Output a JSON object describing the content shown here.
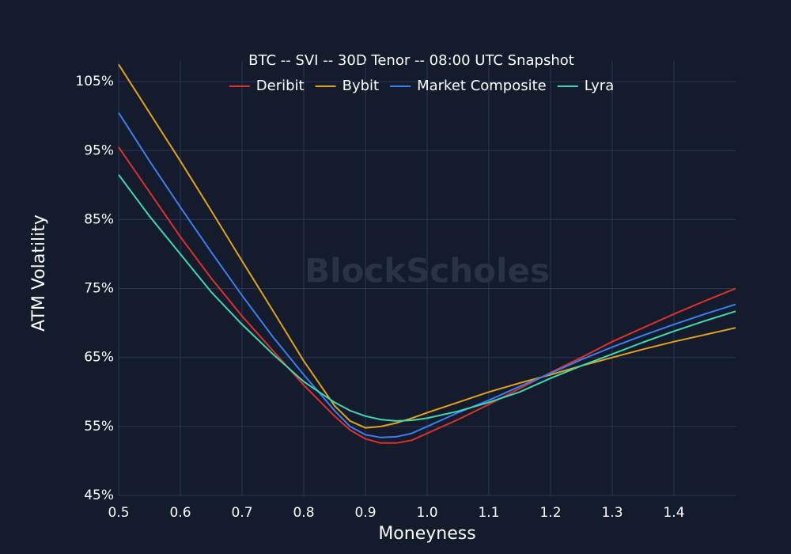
{
  "chart_data": {
    "type": "line",
    "title": "BTC -- SVI -- 30D Tenor -- 08:00 UTC Snapshot",
    "watermark": "BlockScholes",
    "x_label": "Moneyness",
    "y_label": "ATM Volatility",
    "x": [
      0.5,
      0.55,
      0.6,
      0.65,
      0.7,
      0.75,
      0.8,
      0.85,
      0.875,
      0.9,
      0.925,
      0.95,
      0.975,
      1.0,
      1.05,
      1.1,
      1.15,
      1.2,
      1.25,
      1.3,
      1.35,
      1.4,
      1.45,
      1.5
    ],
    "series": [
      {
        "name": "Deribit",
        "color": "#e0302a",
        "values": [
          95.5,
          89,
          82.5,
          76.5,
          71,
          66,
          61,
          56.5,
          54.5,
          53.2,
          52.6,
          52.6,
          53,
          54,
          56,
          58.2,
          60.5,
          62.8,
          65,
          67.3,
          69.3,
          71.3,
          73.2,
          75
        ]
      },
      {
        "name": "Bybit",
        "color": "#e3a21a",
        "values": [
          107.5,
          100.5,
          93.5,
          86.3,
          79,
          71.8,
          64.5,
          58,
          55.8,
          54.8,
          55,
          55.5,
          56.2,
          57,
          58.5,
          60,
          61.3,
          62.5,
          63.8,
          65,
          66.2,
          67.3,
          68.3,
          69.3
        ]
      },
      {
        "name": "Market Composite",
        "color": "#3a7ff0",
        "values": [
          100.5,
          93.5,
          86.8,
          80.3,
          74,
          68,
          62.5,
          57.3,
          55,
          53.8,
          53.4,
          53.5,
          54,
          55,
          57,
          58.8,
          60.8,
          62.7,
          64.7,
          66.5,
          68.2,
          69.8,
          71.3,
          72.7
        ]
      },
      {
        "name": "Lyra",
        "color": "#3fd9b0",
        "values": [
          91.5,
          85.5,
          80,
          74.5,
          69.8,
          65.5,
          61.5,
          58.5,
          57.3,
          56.5,
          56,
          55.8,
          55.9,
          56.2,
          57.2,
          58.5,
          60,
          62,
          63.8,
          65.5,
          67.2,
          68.8,
          70.3,
          71.7
        ]
      }
    ],
    "xlim": [
      0.5,
      1.5
    ],
    "ylim": [
      45,
      108
    ],
    "xticks": [
      0.5,
      0.6,
      0.7,
      0.8,
      0.9,
      {
        "value": 1,
        "label": "1.0"
      },
      1.1,
      1.2,
      1.3,
      1.4
    ],
    "yticks": [
      {
        "value": 45,
        "label": "45%"
      },
      {
        "value": 55,
        "label": "55%"
      },
      {
        "value": 65,
        "label": "65%"
      },
      {
        "value": 75,
        "label": "75%"
      },
      {
        "value": 85,
        "label": "85%"
      },
      {
        "value": 95,
        "label": "95%"
      },
      {
        "value": 105,
        "label": "105%"
      }
    ],
    "grid": true
  }
}
